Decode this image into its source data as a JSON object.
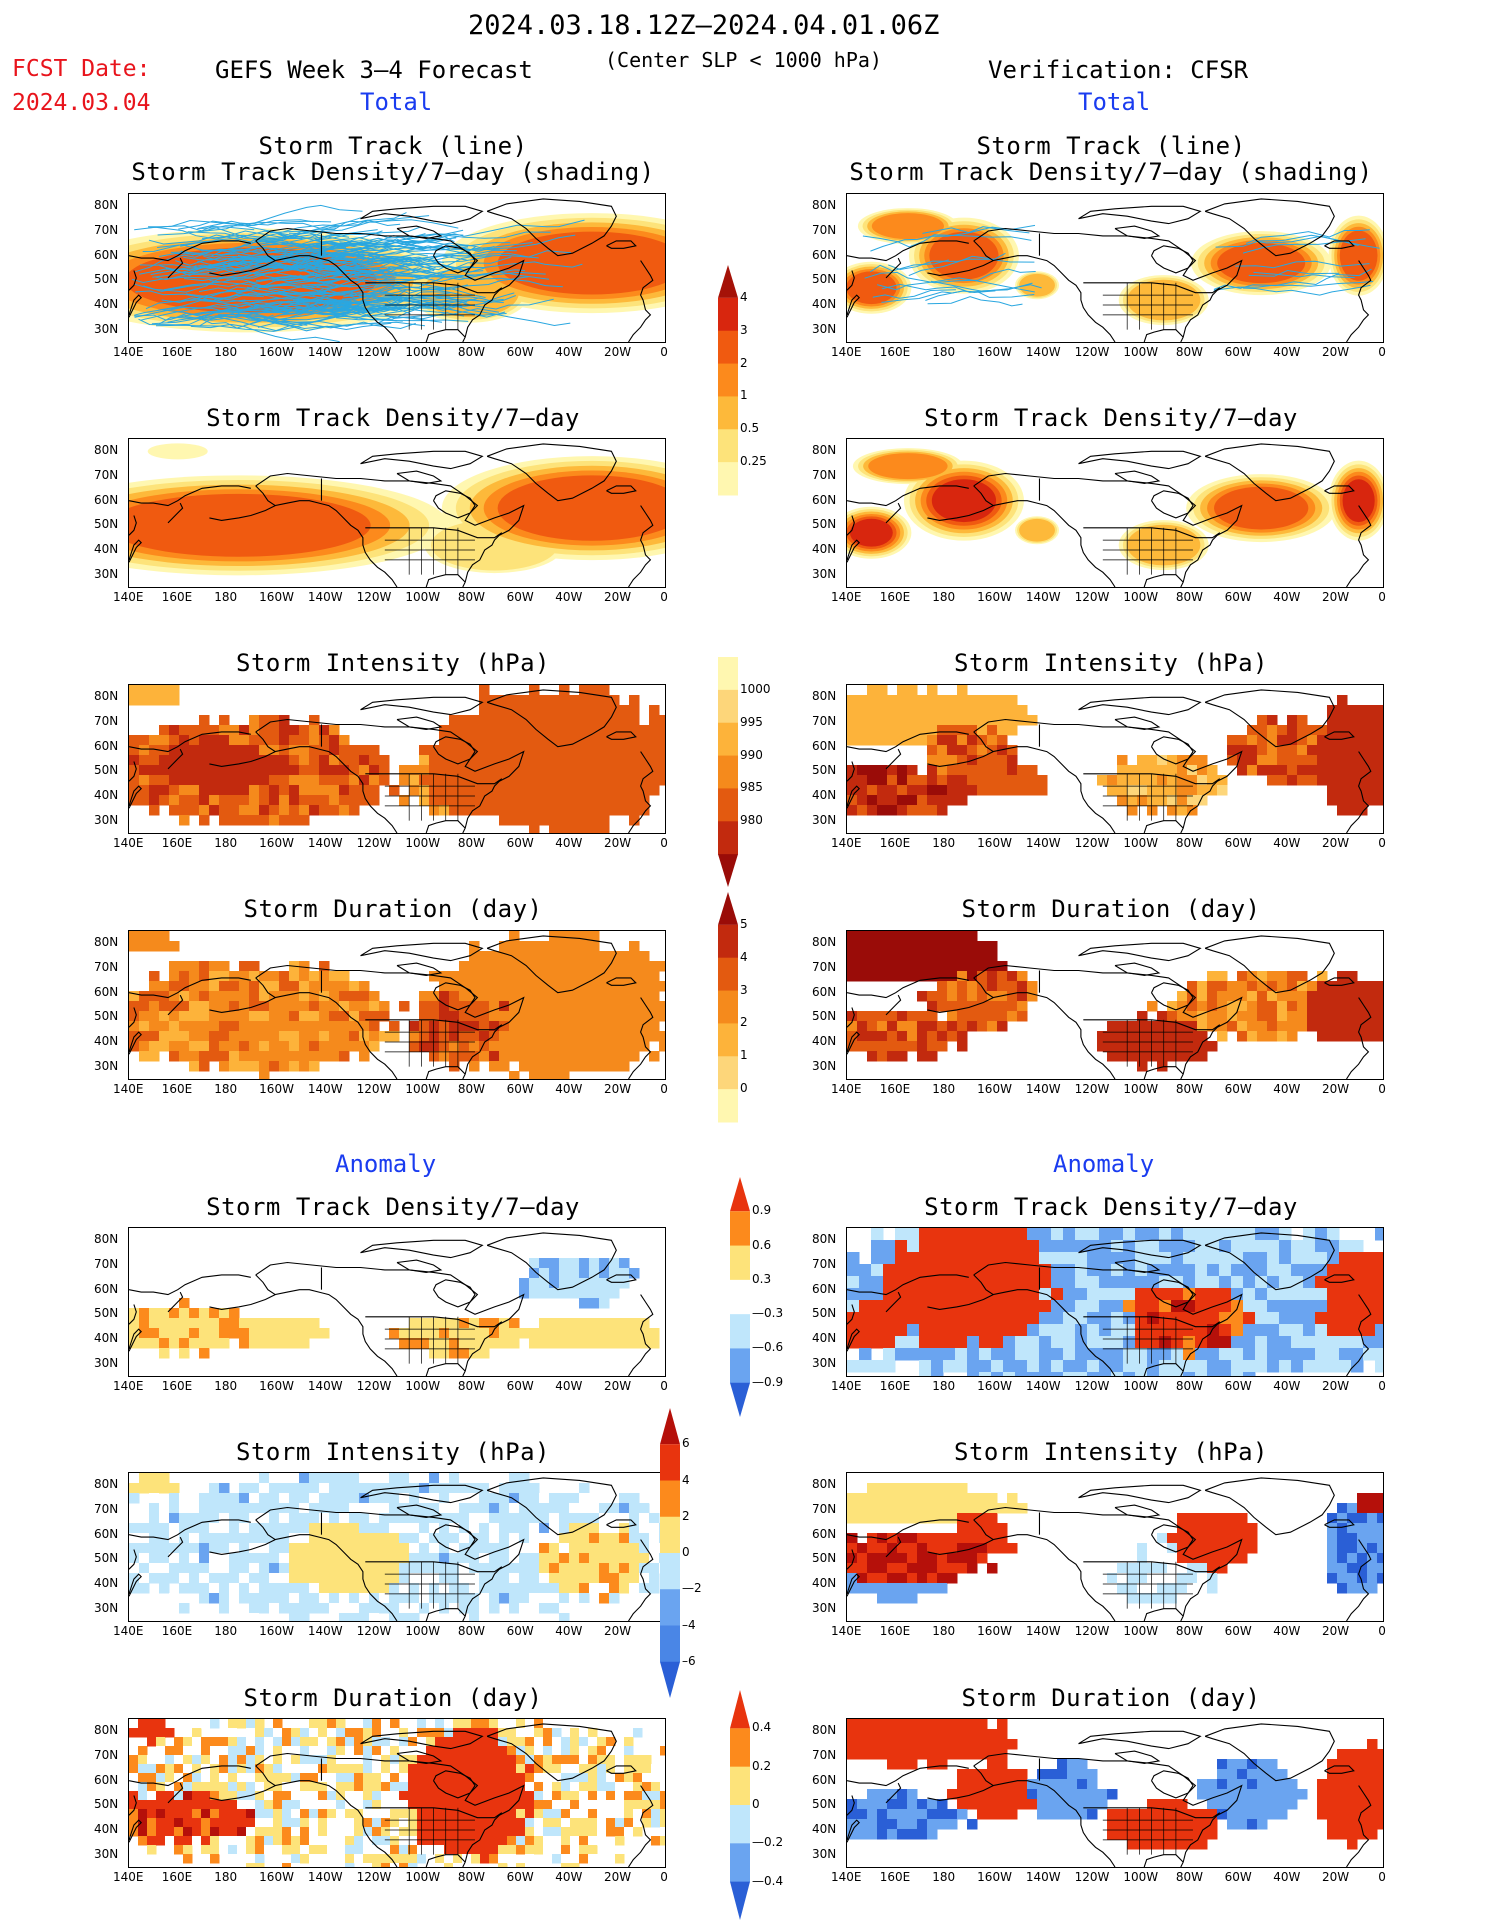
{
  "header": {
    "period": "2024.03.18.12Z—2024.04.01.06Z",
    "fcst_label": "FCST Date:",
    "fcst_date": "2024.03.04",
    "model": "GEFS Week 3—4 Forecast",
    "criterion": "(Center SLP < 1000 hPa)",
    "verification": "Verification: CFSR",
    "total_left": "Total",
    "total_right": "Total",
    "anomaly_left": "Anomaly",
    "anomaly_right": "Anomaly"
  },
  "panel_titles": {
    "track_line": "Storm Track (line)",
    "track_shading": "Storm Track Density/7—day (shading)",
    "density": "Storm Track Density/7—day",
    "intensity": "Storm Intensity (hPa)",
    "duration": "Storm Duration (day)"
  },
  "axes": {
    "lat_ticks": [
      "80N",
      "70N",
      "60N",
      "50N",
      "40N",
      "30N"
    ],
    "lon_ticks": [
      "140E",
      "160E",
      "180",
      "160W",
      "140W",
      "120W",
      "100W",
      "80W",
      "60W",
      "40W",
      "20W",
      "0"
    ]
  },
  "colors": {
    "density": [
      "#fff7b0",
      "#fde37a",
      "#fdb93a",
      "#fc8a1c",
      "#f05a10",
      "#d8260e",
      "#a51208"
    ],
    "intensity": [
      "#fff7b0",
      "#fdd67a",
      "#fdb33a",
      "#f58a1c",
      "#e35a10",
      "#c22a0e",
      "#9a0c08"
    ],
    "duration": [
      "#fff7b0",
      "#fdd67a",
      "#fdb33a",
      "#f58a1c",
      "#e35a10",
      "#c22a0e",
      "#9a0c08"
    ],
    "anomaly": [
      "#2a5fd6",
      "#6aa4f0",
      "#bfe6fb",
      "#ffffff",
      "#fde37a",
      "#fc8a1c",
      "#e8340e",
      "#b5100a"
    ],
    "track": "#2aa7e0",
    "map_line": "#000000"
  },
  "colorbars": [
    {
      "name": "density",
      "labels": [
        "4",
        "3",
        "2",
        "1",
        "0.5",
        "0.25"
      ]
    },
    {
      "name": "intensity",
      "labels": [
        "1000",
        "995",
        "990",
        "985",
        "980"
      ]
    },
    {
      "name": "duration",
      "labels": [
        "5",
        "4",
        "3",
        "2",
        "1",
        "0"
      ]
    },
    {
      "name": "density-anomaly",
      "labels": [
        "0.9",
        "0.6",
        "0.3",
        "—0.3",
        "—0.6",
        "—0.9"
      ]
    },
    {
      "name": "intensity-anomaly",
      "labels": [
        "6",
        "4",
        "2",
        "0",
        "—2",
        "–4",
        "–6"
      ]
    },
    {
      "name": "duration-anomaly",
      "labels": [
        "0.4",
        "0.2",
        "0",
        "—0.2",
        "—0.4"
      ]
    }
  ],
  "chart_data": [
    {
      "type": "heatmap",
      "panel": "forecast-total-track",
      "title": "Storm Track (line)",
      "subtitle": "Storm Track Density/7—day (shading)",
      "xlim": [
        140,
        360
      ],
      "ylim": [
        25,
        85
      ],
      "fields": {
        "tracks": "many tracks 25N-75N across N Pacific and N Atlantic"
      }
    },
    {
      "type": "heatmap",
      "panel": "verification-total-track",
      "title": "Storm Track (line)",
      "subtitle": "Storm Track Density/7—day (shading)",
      "xlim": [
        140,
        360
      ],
      "ylim": [
        25,
        85
      ]
    },
    {
      "type": "heatmap",
      "panel": "forecast-total-density",
      "title": "Storm Track Density/7—day",
      "xlim": [
        140,
        360
      ],
      "ylim": [
        25,
        85
      ]
    },
    {
      "type": "heatmap",
      "panel": "verification-total-density",
      "title": "Storm Track Density/7—day",
      "xlim": [
        140,
        360
      ],
      "ylim": [
        25,
        85
      ]
    },
    {
      "type": "heatmap",
      "panel": "forecast-total-intensity",
      "title": "Storm Intensity (hPa)",
      "xlim": [
        140,
        360
      ],
      "ylim": [
        25,
        85
      ]
    },
    {
      "type": "heatmap",
      "panel": "verification-total-intensity",
      "title": "Storm Intensity (hPa)",
      "xlim": [
        140,
        360
      ],
      "ylim": [
        25,
        85
      ]
    },
    {
      "type": "heatmap",
      "panel": "forecast-total-duration",
      "title": "Storm Duration (day)",
      "xlim": [
        140,
        360
      ],
      "ylim": [
        25,
        85
      ]
    },
    {
      "type": "heatmap",
      "panel": "verification-total-duration",
      "title": "Storm Duration (day)",
      "xlim": [
        140,
        360
      ],
      "ylim": [
        25,
        85
      ]
    },
    {
      "type": "heatmap",
      "panel": "forecast-anomaly-density",
      "title": "Storm Track Density/7—day",
      "xlim": [
        140,
        360
      ],
      "ylim": [
        25,
        85
      ]
    },
    {
      "type": "heatmap",
      "panel": "verification-anomaly-density",
      "title": "Storm Track Density/7—day",
      "xlim": [
        140,
        360
      ],
      "ylim": [
        25,
        85
      ]
    },
    {
      "type": "heatmap",
      "panel": "forecast-anomaly-intensity",
      "title": "Storm Intensity (hPa)",
      "xlim": [
        140,
        360
      ],
      "ylim": [
        25,
        85
      ]
    },
    {
      "type": "heatmap",
      "panel": "verification-anomaly-intensity",
      "title": "Storm Intensity (hPa)",
      "xlim": [
        140,
        360
      ],
      "ylim": [
        25,
        85
      ]
    },
    {
      "type": "heatmap",
      "panel": "forecast-anomaly-duration",
      "title": "Storm Duration (day)",
      "xlim": [
        140,
        360
      ],
      "ylim": [
        25,
        85
      ]
    },
    {
      "type": "heatmap",
      "panel": "verification-anomaly-duration",
      "title": "Storm Duration (day)",
      "xlim": [
        140,
        360
      ],
      "ylim": [
        25,
        85
      ]
    }
  ]
}
